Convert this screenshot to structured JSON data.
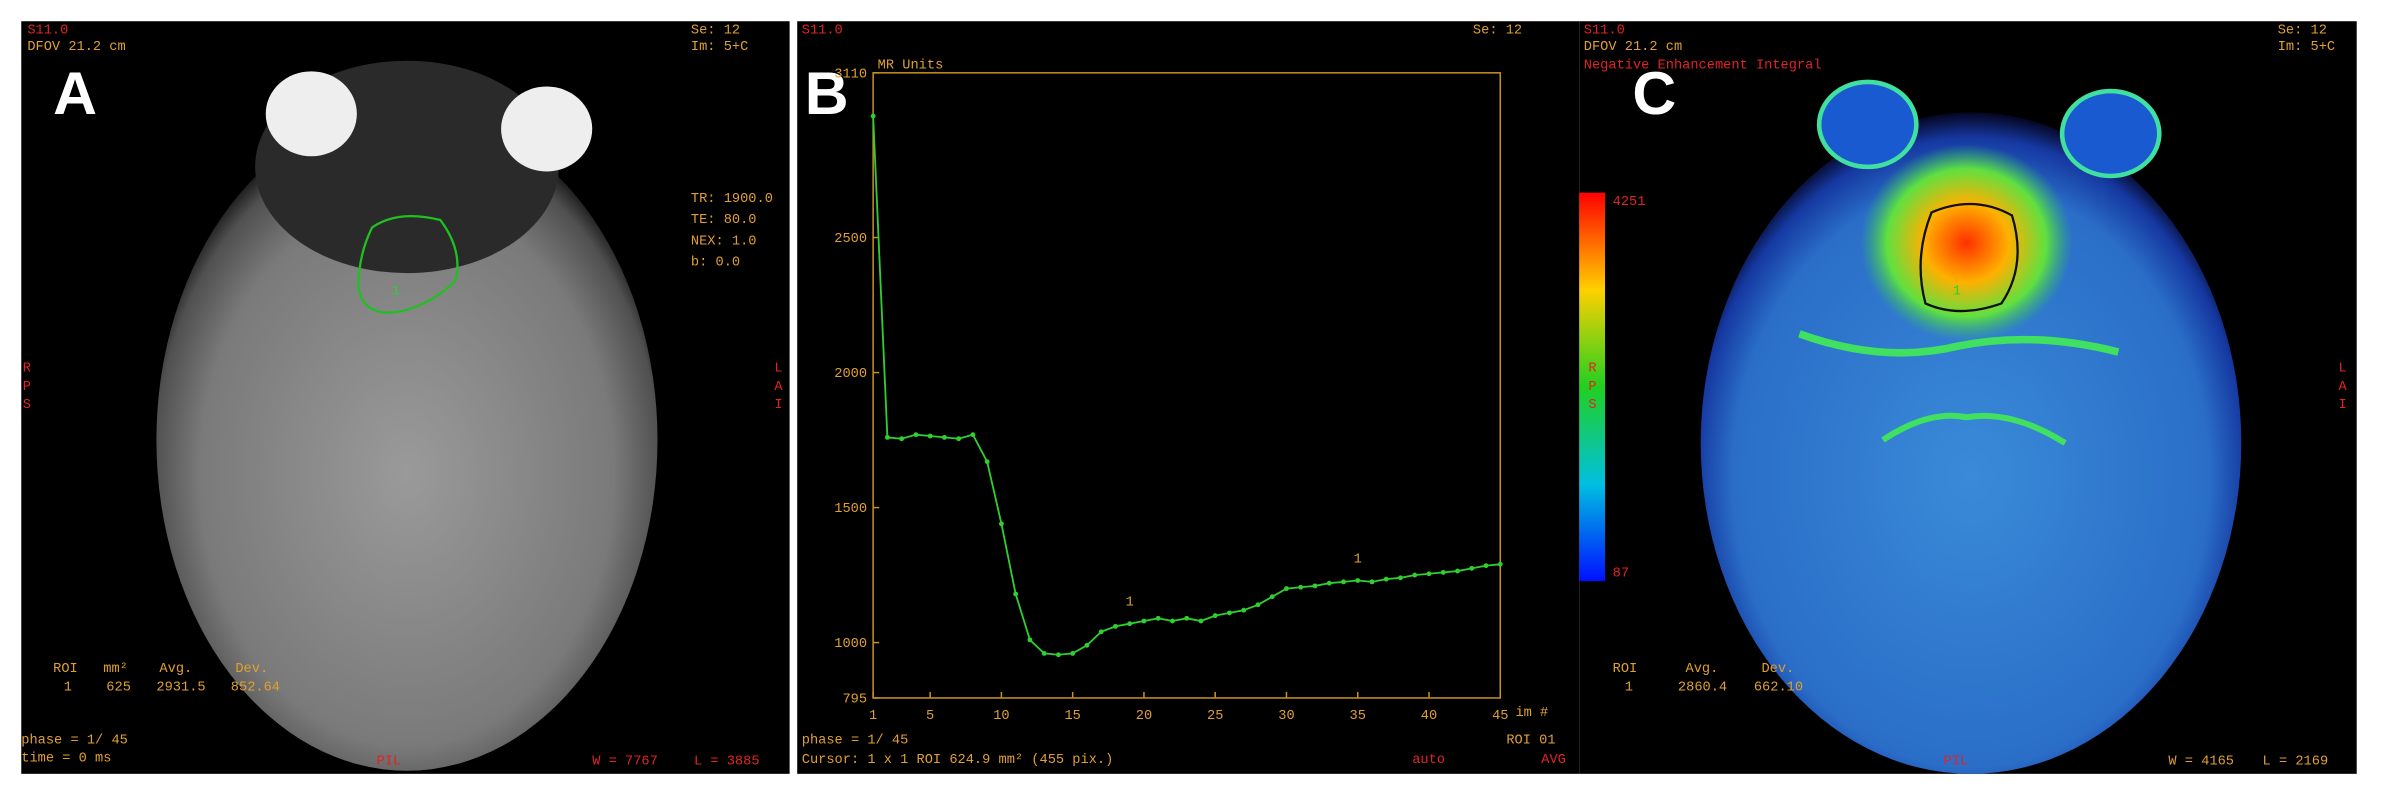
{
  "panel_a": {
    "label": "A",
    "series_number": "S11.0",
    "dfov": "DFOV 21.2 cm",
    "se": "Se: 12",
    "im": "Im: 5+C",
    "params": [
      "TR: 1900.0",
      "TE: 80.0",
      "NEX: 1.0",
      "b:  0.0"
    ],
    "left_orient": [
      "R",
      "P",
      "S"
    ],
    "right_orient": [
      "L",
      "A",
      "I"
    ],
    "roi_header": [
      "ROI",
      "mm²",
      "Avg.",
      "Dev."
    ],
    "roi_row": [
      "1",
      "625",
      "2931.5",
      "852.64"
    ],
    "roi_mark": "1",
    "phase": "phase =  1/ 45",
    "time": "time = 0 ms",
    "bottom_orient": "PIL",
    "window": "W = 7767",
    "level": "L = 3885"
  },
  "panel_b": {
    "label": "B",
    "series_number": "S11.0",
    "se": "Se: 12",
    "roi": "ROI 01",
    "avg": "AVG",
    "phase": "phase =  1/ 45",
    "cursor": "Cursor: 1 x 1  ROI 624.9 mm² (455 pix.)",
    "auto": "auto"
  },
  "chart_data": {
    "type": "line",
    "ylabel": "MR Units",
    "xlabel": "im #",
    "color": "#2fcf2f",
    "x": [
      1,
      2,
      3,
      4,
      5,
      6,
      7,
      8,
      9,
      10,
      11,
      12,
      13,
      14,
      15,
      16,
      17,
      18,
      19,
      20,
      21,
      22,
      23,
      24,
      25,
      26,
      27,
      28,
      29,
      30,
      31,
      32,
      33,
      34,
      35,
      36,
      37,
      38,
      39,
      40,
      41,
      42,
      43,
      44,
      45
    ],
    "values": [
      2950,
      1760,
      1755,
      1770,
      1765,
      1760,
      1755,
      1770,
      1670,
      1440,
      1180,
      1010,
      960,
      955,
      960,
      990,
      1040,
      1060,
      1070,
      1080,
      1090,
      1080,
      1090,
      1080,
      1100,
      1110,
      1120,
      1140,
      1170,
      1200,
      1205,
      1210,
      1220,
      1225,
      1230,
      1225,
      1235,
      1240,
      1250,
      1255,
      1260,
      1265,
      1275,
      1285,
      1290
    ],
    "annotations": [
      "1",
      "1"
    ],
    "xlim": [
      1,
      45
    ],
    "xticks": [
      1,
      5,
      10,
      15,
      20,
      25,
      30,
      35,
      40,
      45
    ],
    "ylim": [
      795,
      3110
    ],
    "yticks": [
      795,
      1000,
      1500,
      2000,
      2500,
      3110
    ]
  },
  "panel_c": {
    "label": "C",
    "series_number": "S11.0",
    "dfov": "DFOV 21.2 cm",
    "map_name": "Negative Enhancement Integral",
    "se": "Se: 12",
    "im": "Im: 5+C",
    "colorbar_max": "4251",
    "colorbar_min": "87",
    "colorbar_orient": [
      "R",
      "P",
      "S"
    ],
    "right_orient": [
      "L",
      "A",
      "I"
    ],
    "roi_header": [
      "ROI",
      "Avg.",
      "Dev."
    ],
    "roi_row": [
      "1",
      "2860.4",
      "662.10"
    ],
    "roi_mark": "1",
    "bottom_orient": "PIL",
    "window": "W = 4165",
    "level": "L = 2169"
  }
}
